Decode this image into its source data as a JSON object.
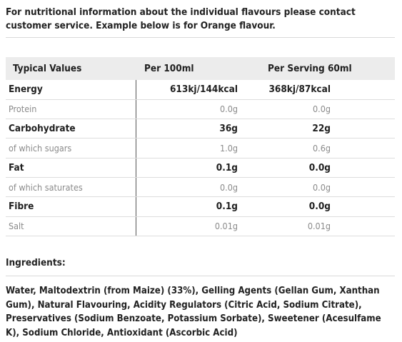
{
  "intro": "For nutritional information about the individual flavours please contact customer service. Example below is for Orange flavour.",
  "table": {
    "headers": [
      "Typical Values",
      "Per 100ml",
      "Per Serving 60ml"
    ],
    "rows": [
      {
        "name": "Energy",
        "per100": "613kj/144kcal",
        "serving": "368kj/87kcal"
      },
      {
        "name": "Protein",
        "per100": "0.0g",
        "serving": "0.0g"
      },
      {
        "name": "Carbohydrate",
        "per100": "36g",
        "serving": "22g"
      },
      {
        "name": "of which sugars",
        "per100": "1.0g",
        "serving": "0.6g"
      },
      {
        "name": "Fat",
        "per100": "0.1g",
        "serving": "0.0g"
      },
      {
        "name": "of which saturates",
        "per100": "0.0g",
        "serving": "0.0g"
      },
      {
        "name": "Fibre",
        "per100": "0.1g",
        "serving": "0.0g"
      },
      {
        "name": "Salt",
        "per100": "0.01g",
        "serving": "0.01g"
      }
    ]
  },
  "ingredients": {
    "title": "Ingredients:",
    "text": "Water, Maltodextrin (from Maize) (33%), Gelling Agents (Gellan Gum, Xanthan Gum), Natural Flavouring, Acidity Regulators (Citric Acid, Sodium Citrate), Preservatives (Sodium Benzoate, Potassium Sorbate), Sweetener (Acesulfame K), Sodium Chloride, Antioxidant (Ascorbic Acid)"
  }
}
